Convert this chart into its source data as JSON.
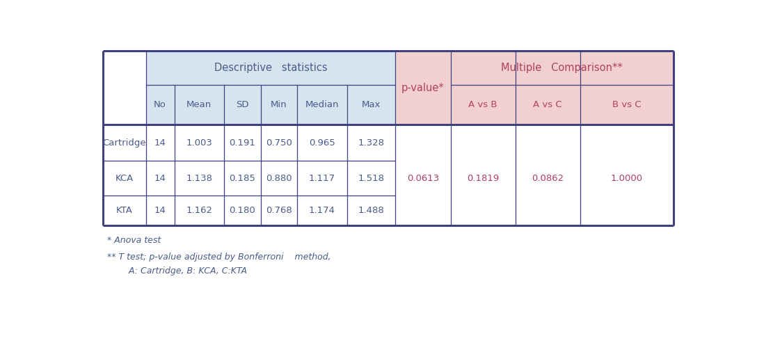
{
  "background_color": "#ffffff",
  "header_bg_blue": "#d6e4f0",
  "header_bg_pink": "#f2d0d0",
  "text_color_dark": "#4a5a8a",
  "text_color_pink": "#b04060",
  "border_color": "#404080",
  "col_headers_blue": [
    "No",
    "Mean",
    "SD",
    "Min",
    "Median",
    "Max"
  ],
  "col_headers_pink": [
    "A vs B",
    "A vs C",
    "B vs C"
  ],
  "group_header_blue": "Descriptive   statistics",
  "group_header_pink": "Multiple   Comparison**",
  "pvalue_label": "p-value*",
  "row_labels": [
    "Cartridge",
    "KCA",
    "KTA"
  ],
  "data": [
    [
      "14",
      "1.003",
      "0.191",
      "0.750",
      "0.965",
      "1.328"
    ],
    [
      "14",
      "1.138",
      "0.185",
      "0.880",
      "1.117",
      "1.518"
    ],
    [
      "14",
      "1.162",
      "0.180",
      "0.768",
      "1.174",
      "1.488"
    ]
  ],
  "pvalue": [
    "",
    "0.0613",
    ""
  ],
  "multi_compare": [
    [
      "",
      "",
      ""
    ],
    [
      "0.1819",
      "0.0862",
      "1.0000"
    ],
    [
      "",
      "",
      ""
    ]
  ],
  "footnote1": "* Anova test",
  "footnote2": "** T test; p-value adjusted by Bonferroni    method,",
  "footnote3": "    A: Cartridge, B: KCA, C:KTA"
}
